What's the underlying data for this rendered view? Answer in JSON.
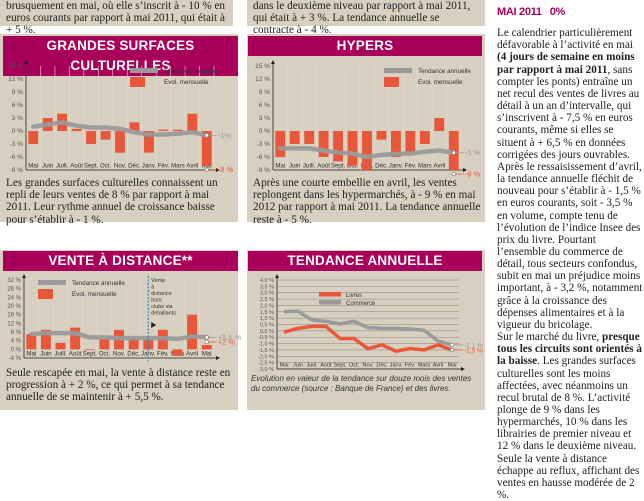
{
  "top_texts": {
    "left": "brusquement en mai, où elle s’inscrit à - 10 % en euros courants par rapport à mai 2011, qui était à + 5 %.",
    "right": "dans le deuxième niveau par rapport à mai 2011, qui était à + 3 %. La tendance annuelle se contracte à - 4 %."
  },
  "sidebar": {
    "title_month": "MAI 2011",
    "title_value": "0%",
    "p1_a": "Le calendrier particulièrement défavorable à l’activité en mai ",
    "p1_bold": "(4 jours de semaine en moins par rapport à mai 2011",
    "p1_b": ", sans compter les ponts) entraîne un net recul des ventes de livres au détail à un an d’intervalle, qui s’inscrivent à - 7,5 % en euros courants, même si elles se situent à + 6,5 % en données corrigées des jours ouvrables. Après le ressaisissement d’avril, la tendance annuelle fléchit de nouveau pour s’établir à - 1,5 % en euros courants, soit - 3,5 % en volume, compte tenu de l’évolution de l’indice Insee des prix du livre. Pourtant l’ensemble du commerce de détail, tous secteurs confondus, subit en mai un préjudice moins important, à - 3,2 %, notamment grâce à la croissance des dépenses alimentaires et à la vigueur du bricolage.",
    "p2_a": "Sur le marché du livre, ",
    "p2_bold": "presque tous les circuits sont orientés à la baisse",
    "p2_b": ". Les grandes surfaces culturelles sont les moins affectées, avec néanmoins un recul brutal de 8 %. L’activité plonge de 9 % dans les hypermarchés, 10 % dans les librairies de premier niveau et 12 % dans le deuxième niveau. Seule la vente à distance échappe au reflux, affichant des ventes en hausse modérée de 2 %."
  },
  "colors": {
    "banner": "#a8005a",
    "bar": "#e8573a",
    "trend": "#9a9a9a",
    "panel": "#d7cfbf"
  },
  "chart_data": [
    {
      "id": "gsc",
      "type": "bar",
      "title": "GRANDES SURFACES CULTURELLES",
      "categories": [
        "Mai",
        "Juin",
        "Juill.",
        "Août",
        "Sept.",
        "Oct.",
        "Nov.",
        "Déc.",
        "Janv.",
        "Fév.",
        "Mars",
        "Avril",
        "Mai"
      ],
      "series": [
        {
          "name": "Evol. mensuelle",
          "kind": "bar",
          "values": [
            -3,
            3,
            4,
            0.5,
            -3,
            -2,
            -5,
            2,
            -5,
            0.3,
            0.3,
            4,
            -8
          ]
        },
        {
          "name": "Tendance annuelle",
          "kind": "line",
          "values": [
            1,
            1.5,
            2,
            1.2,
            0.8,
            0.8,
            0.5,
            -0.3,
            -0.8,
            -0.8,
            -0.6,
            -0.3,
            -1
          ]
        }
      ],
      "yticks": [
        "15 %",
        "12 %",
        "9 %",
        "6 %",
        "3 %",
        "0 %",
        "-3 %",
        "-6 %",
        "-9 %"
      ],
      "ylim": [
        -9,
        15
      ],
      "end_labels": [
        "-1%",
        "-8 %"
      ],
      "legend": [
        "Tendance annuelle",
        "Evol. mensuelle"
      ],
      "legend_position": "top-right",
      "caption": "Les grandes surfaces culturelles connaissent un repli de leurs ventes de 8 % par rapport à mai 2011. Leur rythme annuel de croissance baisse pour s’établir à - 1 %."
    },
    {
      "id": "hypers",
      "type": "bar",
      "title": "HYPERS",
      "categories": [
        "Mai",
        "Juin",
        "Juill.",
        "Août",
        "Sept.",
        "Oct.",
        "Nov.",
        "Déc.",
        "Janv.",
        "Fév.",
        "Mars",
        "Avril",
        "Mai"
      ],
      "series": [
        {
          "name": "Evol. mensuelle",
          "kind": "bar",
          "values": [
            -6,
            -3,
            -3,
            -6,
            -7,
            -8,
            -9,
            -2,
            -6,
            -5,
            -3,
            3,
            -9
          ]
        },
        {
          "name": "Tendance annuelle",
          "kind": "line",
          "values": [
            -4,
            -4,
            -4,
            -4.5,
            -5,
            -5.2,
            -6,
            -5.5,
            -5.3,
            -5.2,
            -4.8,
            -4.5,
            -5
          ]
        }
      ],
      "yticks": [
        "15 %",
        "12 %",
        "9 %",
        "6 %",
        "3 %",
        "0 %",
        "-3 %",
        "-6 %",
        "-9 %"
      ],
      "ylim": [
        -9,
        15
      ],
      "end_labels": [
        "-5 %",
        "-9 %"
      ],
      "legend": [
        "Tendance annuelle",
        "Evol. mensuelle"
      ],
      "legend_position": "top-right",
      "caption": "Après une courte embellie en avril, les ventes replongent dans les hypermarchés, à - 9 % en mai 2012 par rapport à mai 2011. La tendance annuelle reste à - 5 %."
    },
    {
      "id": "vad",
      "type": "bar",
      "title": "VENTE À DISTANCE**",
      "categories": [
        "Mai",
        "Juin",
        "Juill.",
        "Août",
        "Sept.",
        "Oct.",
        "Nov.",
        "Déc.",
        "Janv.",
        "Fév.",
        "Mars",
        "Avril",
        "Mai"
      ],
      "series": [
        {
          "name": "Evol. mensuelle",
          "kind": "bar",
          "values": [
            7,
            9,
            3,
            10,
            0,
            5,
            9,
            5,
            5,
            9,
            -3,
            16,
            2
          ]
        },
        {
          "name": "Tendance annuelle",
          "kind": "line",
          "values": [
            7,
            7.5,
            7.5,
            7.5,
            5.5,
            5.5,
            5.2,
            5.2,
            5.2,
            5.2,
            4.8,
            6,
            5.5
          ]
        }
      ],
      "yticks": [
        "32 %",
        "28 %",
        "24 %",
        "20 %",
        "16 %",
        "12 %",
        "8 %",
        "4 %",
        "0 %",
        "-4 %"
      ],
      "ylim": [
        -4,
        32
      ],
      "end_labels": [
        "+5,5 %",
        "+2 %"
      ],
      "annotation": "Vente à distance hors clubs via détaillants",
      "legend": [
        "Tendance annuelle",
        "Evol. mensuelle"
      ],
      "legend_position": "top-left",
      "caption": "Seule rescapée en mai, la vente à distance reste en progression à + 2 %, ce qui permet à sa tendance annuelle de se maintenir à + 5,5 %."
    },
    {
      "id": "tendance",
      "type": "line",
      "title": "TENDANCE ANNUELLE",
      "categories": [
        "Mai",
        "Juin",
        "Juill.",
        "Août",
        "Sept.",
        "Oct.",
        "Nov.",
        "Déc.",
        "Janv.",
        "Fév.",
        "Mars",
        "Avril",
        "Mai"
      ],
      "series": [
        {
          "name": "Livres",
          "values": [
            -0.1,
            0.2,
            0.35,
            0.35,
            -0.6,
            -0.6,
            -1.4,
            -1.1,
            -1.6,
            -1.4,
            -1.5,
            -1.1,
            -1.5
          ]
        },
        {
          "name": "Commerce",
          "values": [
            1.5,
            1.55,
            0.85,
            0.75,
            0.55,
            0.75,
            0.25,
            0.2,
            0.2,
            0.15,
            0.05,
            -0.8,
            -1.1
          ]
        }
      ],
      "yticks": [
        "4,0 %",
        "3,5 %",
        "3,0 %",
        "2,5 %",
        "2,0 %",
        "1,5 %",
        "1,0 %",
        "0,5 %",
        "0,0 %",
        "-0,5 %",
        "-1,0 %",
        "-1,5 %",
        "-2,0 %",
        "-2,5 %",
        "-3,0 %"
      ],
      "ylim": [
        -3,
        4
      ],
      "end_labels": [
        "-1,1 %",
        "-1,5 %"
      ],
      "legend": [
        "Livres",
        "Commerce"
      ],
      "legend_position": "top-left",
      "caption": "Evolution en valeur de la tendance sur douze mois des ventes du commerce (source : Banque de France) et des livres."
    }
  ]
}
